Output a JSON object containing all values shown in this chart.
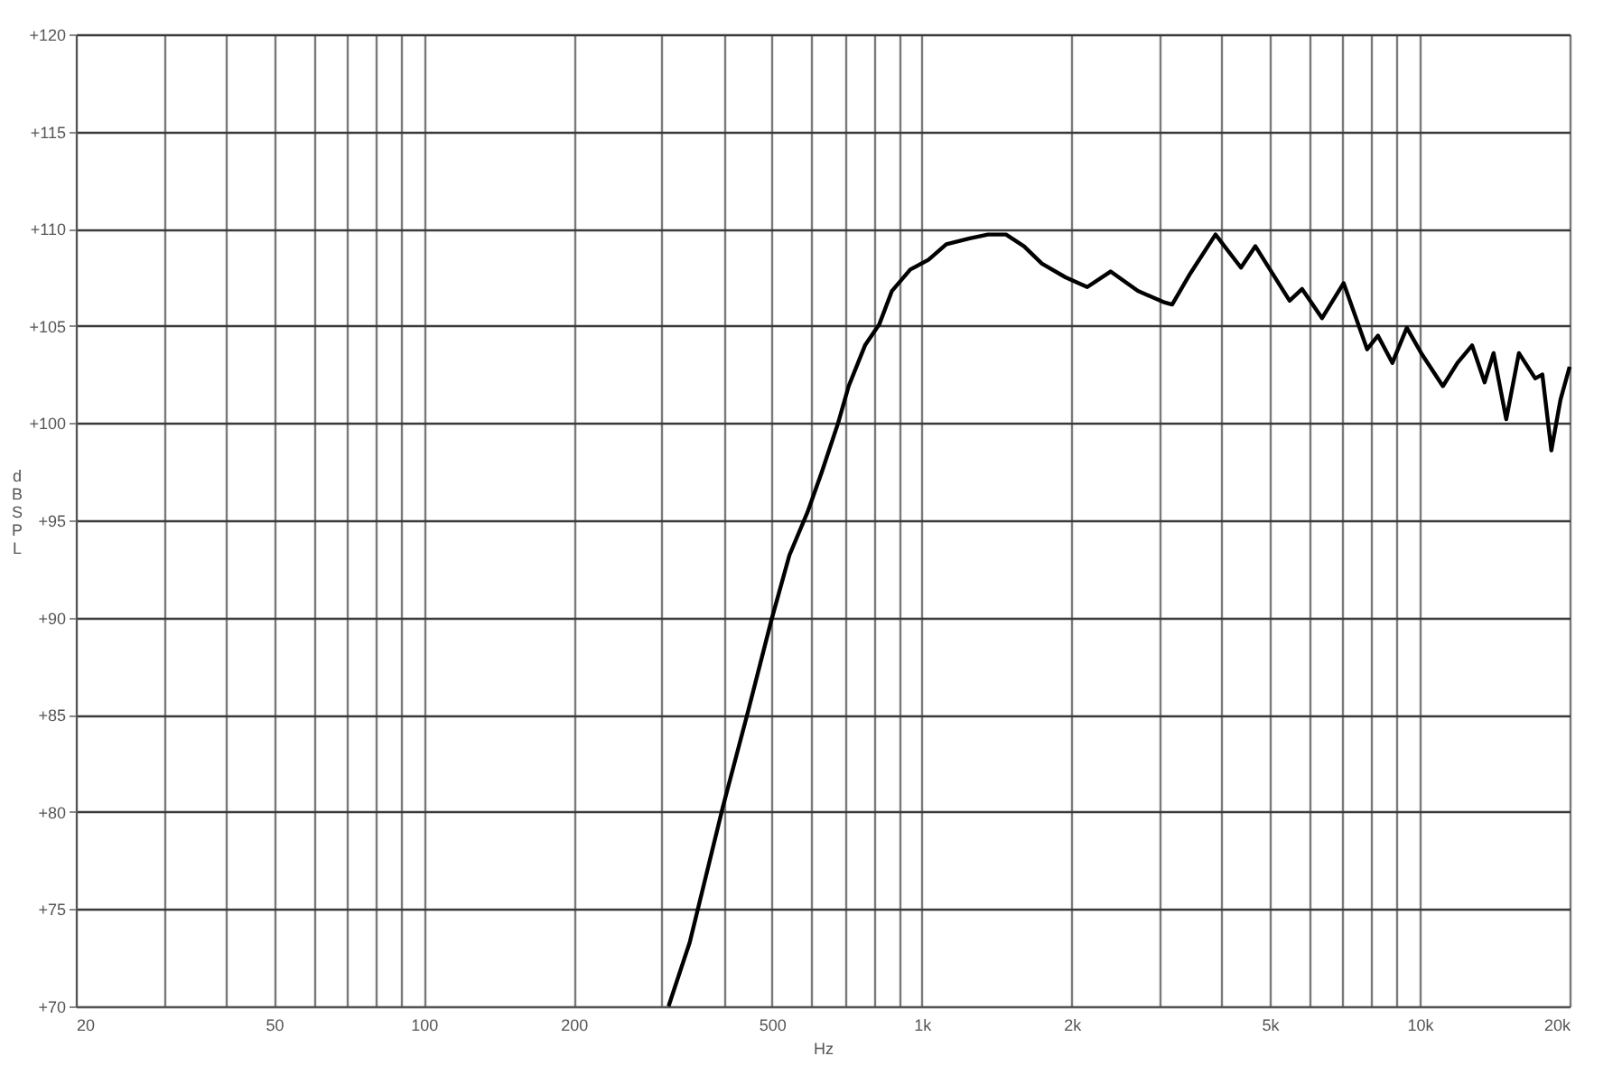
{
  "chart_data": {
    "type": "line",
    "xlabel": "Hz",
    "ylabel": "dB SPL",
    "x": [
      310,
      342,
      398,
      447,
      498,
      542,
      589,
      630,
      679,
      713,
      769,
      822,
      871,
      948,
      1031,
      1120,
      1248,
      1358,
      1476,
      1604,
      1743,
      1944,
      2149,
      2394,
      2716,
      3077,
      3183,
      3461,
      3889,
      4375,
      4677,
      5478,
      5805,
      6366,
      7034,
      7840,
      8242,
      8812,
      9420,
      10070,
      11130,
      11910,
      12740,
      13500,
      14070,
      14920,
      15820,
      17060,
      17630,
      18380,
      19170,
      20000
    ],
    "series": [
      {
        "color": "#000000",
        "values": [
          70.0,
          73.3,
          80.2,
          85.1,
          89.8,
          93.2,
          95.4,
          97.5,
          100.0,
          101.9,
          104.0,
          105.1,
          106.8,
          107.9,
          108.4,
          109.2,
          109.5,
          109.7,
          109.7,
          109.1,
          108.2,
          107.5,
          107.0,
          107.8,
          106.8,
          106.2,
          106.1,
          107.7,
          109.7,
          108.0,
          109.1,
          106.3,
          106.9,
          105.4,
          107.2,
          103.8,
          104.5,
          103.1,
          104.9,
          103.6,
          101.9,
          103.1,
          104.0,
          102.1,
          103.6,
          100.2,
          103.6,
          102.3,
          102.5,
          98.6,
          101.2,
          102.9
        ]
      }
    ],
    "log": "x",
    "xlim": [
      20,
      20000
    ],
    "ylim": [
      70,
      120
    ],
    "xticks": [
      20,
      {
        "value": 30,
        "label": null
      },
      {
        "value": 40,
        "label": null
      },
      50,
      {
        "value": 60,
        "label": null
      },
      {
        "value": 70,
        "label": null
      },
      {
        "value": 80,
        "label": null
      },
      {
        "value": 90,
        "label": null
      },
      100,
      200,
      {
        "value": 300,
        "label": null
      },
      {
        "value": 400,
        "label": null
      },
      500,
      {
        "value": 600,
        "label": null
      },
      {
        "value": 700,
        "label": null
      },
      {
        "value": 800,
        "label": null
      },
      {
        "value": 900,
        "label": null
      },
      {
        "value": 1000,
        "label": "1k"
      },
      {
        "value": 2000,
        "label": "2k"
      },
      {
        "value": 3000,
        "label": null
      },
      {
        "value": 4000,
        "label": null
      },
      {
        "value": 5000,
        "label": "5k"
      },
      {
        "value": 6000,
        "label": null
      },
      {
        "value": 7000,
        "label": null
      },
      {
        "value": 8000,
        "label": null
      },
      {
        "value": 9000,
        "label": null
      },
      {
        "value": 10000,
        "label": "10k"
      },
      {
        "value": 20000,
        "label": "20k"
      }
    ],
    "yticks": [
      {
        "value": 70,
        "label": "+70"
      },
      {
        "value": 75,
        "label": "+75"
      },
      {
        "value": 80,
        "label": "+80"
      },
      {
        "value": 85,
        "label": "+85"
      },
      {
        "value": 90,
        "label": "+90"
      },
      {
        "value": 95,
        "label": "+95"
      },
      {
        "value": 100,
        "label": "+100"
      },
      {
        "value": 105,
        "label": "+105"
      },
      {
        "value": 110,
        "label": "+110"
      },
      {
        "value": 115,
        "label": "+115"
      },
      {
        "value": 120,
        "label": "+120"
      }
    ],
    "grid": true,
    "marker": "none",
    "line_style": "solid"
  }
}
